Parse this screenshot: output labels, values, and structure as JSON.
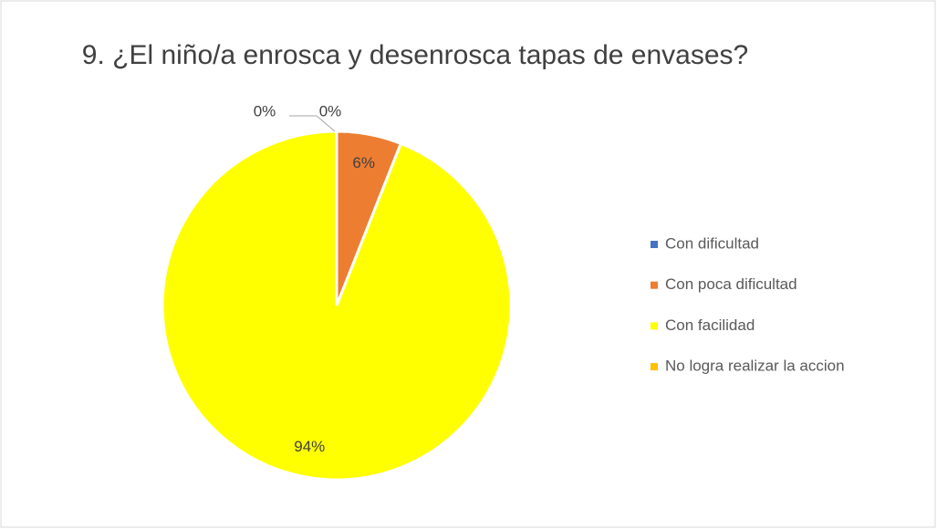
{
  "chart_data": {
    "type": "pie",
    "title": "9. ¿El niño/a enrosca y desenrosca tapas de envases?",
    "categories": [
      "Con dificultad",
      "Con poca dificultad",
      "Con facilidad",
      "No logra realizar la accion"
    ],
    "values": [
      0,
      6,
      94,
      0
    ],
    "value_labels": [
      "0%",
      "6%",
      "94%",
      "0%"
    ],
    "colors": [
      "#4472c4",
      "#ed7d31",
      "#ffff00",
      "#ffc000"
    ],
    "legend": "right"
  }
}
